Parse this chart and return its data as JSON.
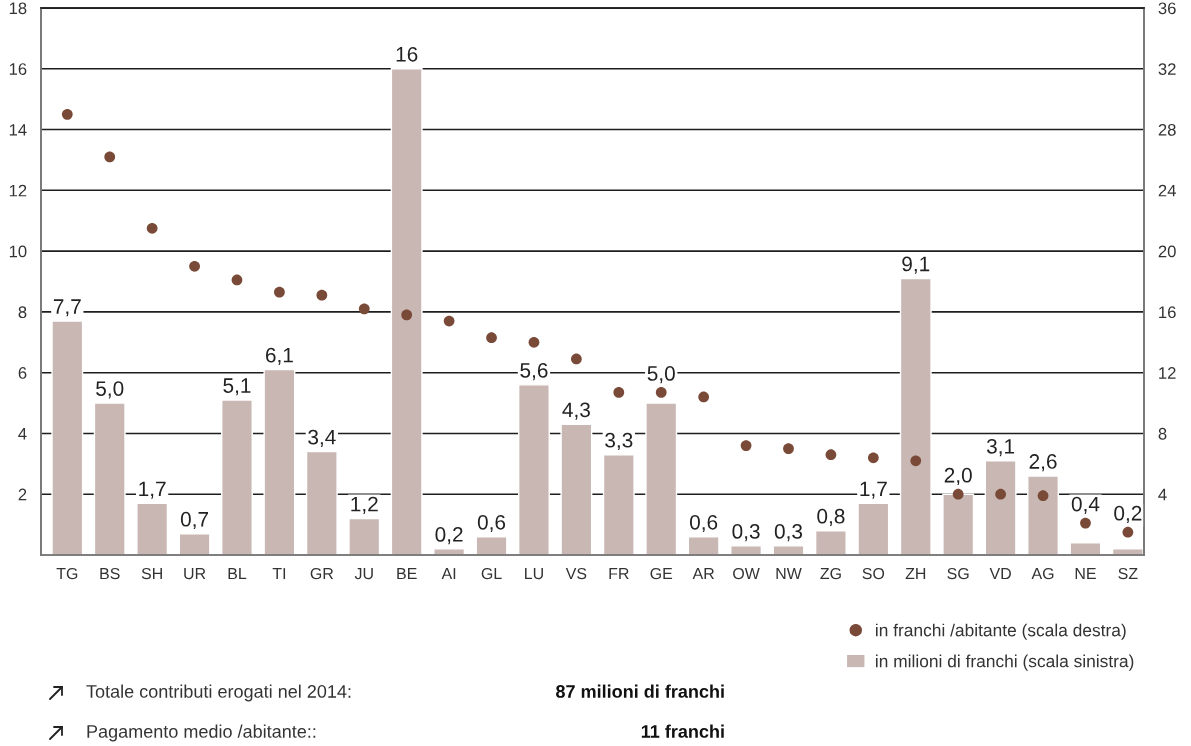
{
  "chart_data": {
    "type": "bar",
    "categories": [
      "TG",
      "BS",
      "SH",
      "UR",
      "BL",
      "TI",
      "GR",
      "JU",
      "BE",
      "AI",
      "GL",
      "LU",
      "VS",
      "FR",
      "GE",
      "AR",
      "OW",
      "NW",
      "ZG",
      "SO",
      "ZH",
      "SG",
      "VD",
      "AG",
      "NE",
      "SZ"
    ],
    "series": [
      {
        "name": "in franchi /abitante (scala destra)",
        "type": "scatter",
        "axis": "y2",
        "color": "#7a4a38",
        "marker": "circle",
        "values": [
          29.0,
          26.2,
          21.5,
          19.0,
          18.1,
          17.3,
          17.1,
          16.2,
          15.8,
          15.4,
          14.3,
          14.0,
          12.9,
          10.7,
          10.7,
          10.4,
          7.2,
          7.0,
          6.6,
          6.4,
          6.2,
          4.0,
          4.0,
          3.9,
          2.1,
          1.5
        ]
      },
      {
        "name": "in milioni di franchi (scala sinistra)",
        "color": "#c8b7b2",
        "values": [
          7.7,
          5.0,
          1.7,
          0.7,
          5.1,
          6.1,
          3.4,
          1.2,
          16,
          0.2,
          0.6,
          5.6,
          4.3,
          3.3,
          5.0,
          0.6,
          0.3,
          0.3,
          0.8,
          1.7,
          9.1,
          2.0,
          3.1,
          2.6,
          0.4,
          0.2
        ],
        "value_labels": [
          "7,7",
          "5,0",
          "1,7",
          "0,7",
          "5,1",
          "6,1",
          "3,4",
          "1,2",
          "16",
          "0,2",
          "0,6",
          "5,6",
          "4,3",
          "3,3",
          "5,0",
          "0,6",
          "0,3",
          "0,3",
          "0,8",
          "1,7",
          "9,1",
          "2,0",
          "3,1",
          "2,6",
          "0,4",
          "0,2"
        ]
      }
    ],
    "ylim": [
      0,
      18
    ],
    "yticks": [
      2,
      4,
      6,
      8,
      10,
      12,
      14,
      16,
      18
    ],
    "y2lim": [
      0,
      36
    ],
    "y2ticks": [
      4,
      8,
      12,
      16,
      20,
      24,
      28,
      32,
      36
    ],
    "grid": "y",
    "legend": "bottom right",
    "annotations": [
      "Totale contributi erogati nel 2014:",
      "87 milioni di franchi",
      "Pagamento medio /abitante::",
      "11 franchi"
    ]
  }
}
